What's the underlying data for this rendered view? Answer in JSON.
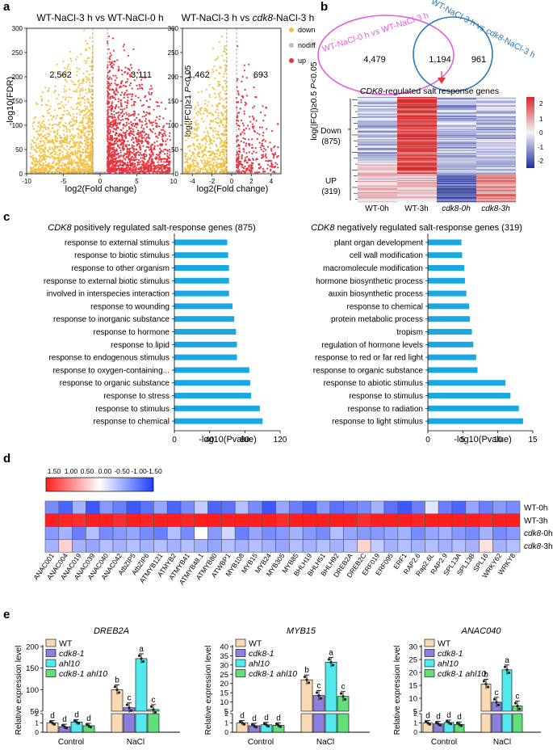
{
  "panel_labels": {
    "a": "a",
    "b": "b",
    "c": "c",
    "d": "d",
    "e": "e"
  },
  "volcano": {
    "left": {
      "title": "WT-NaCl-3 h vs WT-NaCl-0 h",
      "down_count": "2,562",
      "up_count": "3,111"
    },
    "right": {
      "title_pre": "WT-NaCl-3 h vs ",
      "title_it": "cdk8",
      "title_post": "-NaCl-3 h",
      "down_count": "1,462",
      "up_count": "693"
    },
    "ylabel": "-log10(FDR)",
    "xlabel": "log2(Fold change)",
    "thr1_a": "log(|FC|)≥1  ",
    "thr1_b": "P",
    "thr1_c": "<0.05",
    "thr2_a": "log(|FC|)≥0.5  ",
    "thr2_b": "P",
    "thr2_c": "<0.05",
    "legend": [
      "down",
      "nodiff",
      "up"
    ],
    "colors": {
      "down": "#f3c242",
      "nodiff": "#bdbdbd",
      "up": "#e8343f"
    },
    "yticks": [
      "0",
      "50",
      "100",
      "150",
      "200",
      "250",
      "300"
    ],
    "xticks_left": [
      "-10",
      "-5",
      "0",
      "5",
      "10"
    ],
    "xticks_right": [
      "-4",
      "-2",
      "0",
      "2",
      "4"
    ]
  },
  "venn": {
    "set1": "WT-NaCl-0 h vs WT-NaCl-3 h",
    "set2_pre": "WT-NaCl-3 h vs ",
    "set2_it": "cdk8",
    "set2_post": "-NaCl-3 h",
    "only1": "4,479",
    "both": "1,194",
    "only2": "961",
    "colors": {
      "set1": "#e95be0",
      "set2": "#2a78b8"
    }
  },
  "heatmap_b": {
    "title_it": "CDK8",
    "title_rest": "-regulated salt response genes",
    "down": "Down",
    "down_n": "(875)",
    "up": "UP",
    "up_n": "(319)",
    "cols": [
      "WT-0h",
      "WT-3h",
      "cdk8-0h",
      "cdk8-3h"
    ],
    "scale": [
      "2",
      "1",
      "0",
      "-1",
      "-2"
    ]
  },
  "go_left": {
    "title_it": "CDK8",
    "title_rest": " positively regulated salt-response genes (875)",
    "xlabel": "-log10(Pvalue)",
    "ticks": [
      "0",
      "40",
      "80",
      "120"
    ],
    "terms": [
      "response to external stimulus",
      "response to biotic stimulus",
      "response to other organism",
      "response to external biotic stimulus",
      "involved in interspecies interaction",
      "response to wounding",
      "response to inorganic substance",
      "response to hormone",
      "response to lipid",
      "response to endogenous stimulus",
      "response to oxygen-containing...",
      "response to organic substance",
      "response to stress",
      "response to stimulus",
      "response to chemical"
    ],
    "values": [
      60,
      61,
      62,
      62,
      62,
      66,
      68,
      70,
      71,
      71,
      85,
      86,
      87,
      97,
      100
    ],
    "color": "#1aa8e3"
  },
  "go_right": {
    "title_it": "CDK8",
    "title_rest": " negatively regulated salt-response genes (319)",
    "xlabel": "-log10(Pvalue)",
    "ticks": [
      "0",
      "5",
      "10",
      "15"
    ],
    "terms": [
      "plant organ development",
      "cell wall modification",
      "macromolecule modification",
      "hormone biosynthetic process",
      "auxin biosynthetic process",
      "response to chemical",
      "protein metabolic process",
      "tropism",
      "regulation of hormone levels",
      "response to red or far red light",
      "response to organic substance",
      "response to abiotic stimulus",
      "response to stimulus",
      "response to radiation",
      "response to light stimulus"
    ],
    "values": [
      4.8,
      4.9,
      5.2,
      5.3,
      5.5,
      5.9,
      6.0,
      6.3,
      6.5,
      6.9,
      7.1,
      11.1,
      11.8,
      13.0,
      13.6
    ],
    "color": "#1aa8e3"
  },
  "heatmap_d": {
    "scale": [
      "1.50",
      "1.00",
      "0.50",
      "0.00",
      "-0.50",
      "-1.00",
      "-1.50"
    ],
    "rows": [
      "WT-0h",
      "WT-3h",
      "cdk8-0h",
      "cdk8-3h"
    ],
    "genes": [
      "ANAC001",
      "ANAC004",
      "ANAC019",
      "ANAC039",
      "ANAC040",
      "ANAC042",
      "AtbZIP5",
      "AtbZIP6",
      "ATMYB121",
      "ATMYB2",
      "ATMYB41",
      "ATMYB48.1",
      "ATMYB80",
      "ATWBP1",
      "MYB108",
      "MYB15",
      "MYB24",
      "MYB305",
      "MYB85",
      "BHLH19",
      "BHLH51",
      "BHLH92",
      "DREB2A",
      "DREB2C",
      "ERF019",
      "ERF095",
      "ERF1",
      "RAP2.6",
      "Rap2.6L",
      "RAP2.9",
      "SPL13A",
      "SPL13B",
      "SPL16",
      "WRKY62",
      "WRKY8"
    ],
    "values": [
      [
        -0.9,
        -1.2,
        -0.6,
        -1.3,
        -0.8,
        -1.0,
        -1.3,
        -1.1,
        -0.7,
        -1.2,
        -0.9,
        -0.4,
        -1.2,
        -1.1,
        -0.5,
        -0.9,
        -1.3,
        -0.7,
        -1.0,
        -1.2,
        -0.8,
        -1.1,
        -1.0,
        -0.9,
        -0.6,
        -1.1,
        -1.3,
        -1.0,
        -0.2,
        -1.0,
        -1.2,
        -0.7,
        -1.0,
        -0.8,
        -0.9
      ],
      [
        1.5,
        1.45,
        1.4,
        1.5,
        1.5,
        1.4,
        1.5,
        1.45,
        1.5,
        1.5,
        1.45,
        1.5,
        1.5,
        1.5,
        1.5,
        1.5,
        1.5,
        1.4,
        1.5,
        1.5,
        1.5,
        1.5,
        1.5,
        1.4,
        1.5,
        1.5,
        1.5,
        1.45,
        1.5,
        1.5,
        1.5,
        1.5,
        1.45,
        1.5,
        1.5
      ],
      [
        -0.8,
        -0.6,
        -1.0,
        -0.5,
        -0.9,
        -0.8,
        -0.7,
        -0.9,
        -1.0,
        -0.5,
        -0.9,
        0.0,
        -0.8,
        -0.3,
        -1.0,
        -0.7,
        -0.9,
        -0.8,
        -0.6,
        -0.8,
        -0.9,
        -0.5,
        -0.7,
        -0.8,
        -0.8,
        -0.7,
        -0.6,
        -0.9,
        -0.7,
        -0.6,
        -0.8,
        -0.9,
        -0.6,
        -0.9,
        -0.8
      ],
      [
        -0.6,
        0.3,
        -0.6,
        -0.7,
        -0.5,
        -0.6,
        -0.5,
        -0.6,
        -0.5,
        -0.6,
        -0.5,
        -0.6,
        -0.7,
        -0.5,
        -0.6,
        -0.5,
        -0.6,
        -0.7,
        -0.5,
        -0.6,
        -0.5,
        -0.6,
        -0.5,
        0.3,
        -0.4,
        -0.6,
        -0.5,
        -0.6,
        -0.5,
        -0.6,
        -0.5,
        -0.6,
        0.2,
        -0.6,
        -0.5
      ]
    ]
  },
  "chart_data": {
    "type": "bar",
    "ylabel": "Relative expression level",
    "categories": [
      "Control",
      "NaCl"
    ],
    "legend": [
      "WT",
      "cdk8-1",
      "ahl10",
      "cdk8-1 ahl10"
    ],
    "colors": [
      "#f8d9b3",
      "#8f7fdc",
      "#52e8ec",
      "#62df79"
    ],
    "panels": [
      {
        "title": "DREB2A",
        "ylim_low": [
          0,
          2
        ],
        "ylim_high": [
          50,
          200
        ],
        "ticks_high": [
          "50",
          "100",
          "150",
          "200"
        ],
        "series": [
          {
            "name": "WT",
            "values": [
              1.0,
              100
            ]
          },
          {
            "name": "cdk8-1",
            "values": [
              0.6,
              58
            ]
          },
          {
            "name": "ahl10",
            "values": [
              1.1,
              172
            ]
          },
          {
            "name": "cdk8-1 ahl10",
            "values": [
              0.7,
              54
            ]
          }
        ],
        "letters": [
          [
            "d",
            "b"
          ],
          [
            "d",
            "c"
          ],
          [
            "d",
            "a"
          ],
          [
            "d",
            "c"
          ]
        ]
      },
      {
        "title": "MYB15",
        "ylim_low": [
          0,
          2
        ],
        "ylim_high": [
          5,
          40
        ],
        "ticks_high": [
          "5",
          "10",
          "15",
          "20",
          "25",
          "30",
          "35",
          "40"
        ],
        "series": [
          {
            "name": "WT",
            "values": [
              1.0,
              22
            ]
          },
          {
            "name": "cdk8-1",
            "values": [
              0.7,
              13.5
            ]
          },
          {
            "name": "ahl10",
            "values": [
              0.8,
              31.5
            ]
          },
          {
            "name": "cdk8-1 ahl10",
            "values": [
              0.75,
              13
            ]
          }
        ],
        "letters": [
          [
            "d",
            "b"
          ],
          [
            "d",
            "c"
          ],
          [
            "d",
            "a"
          ],
          [
            "d",
            "c"
          ]
        ]
      },
      {
        "title": "ANAC040",
        "ylim_low": [
          0,
          2
        ],
        "ylim_high": [
          5,
          30
        ],
        "ticks_high": [
          "5",
          "10",
          "15",
          "20",
          "25",
          "30"
        ],
        "series": [
          {
            "name": "WT",
            "values": [
              1.0,
              15.5
            ]
          },
          {
            "name": "cdk8-1",
            "values": [
              0.9,
              8.5
            ]
          },
          {
            "name": "ahl10",
            "values": [
              1.05,
              21
            ]
          },
          {
            "name": "cdk8-1 ahl10",
            "values": [
              0.85,
              7
            ]
          }
        ],
        "letters": [
          [
            "d",
            "b"
          ],
          [
            "d",
            "c"
          ],
          [
            "d",
            "a"
          ],
          [
            "d",
            "c"
          ]
        ]
      }
    ]
  }
}
